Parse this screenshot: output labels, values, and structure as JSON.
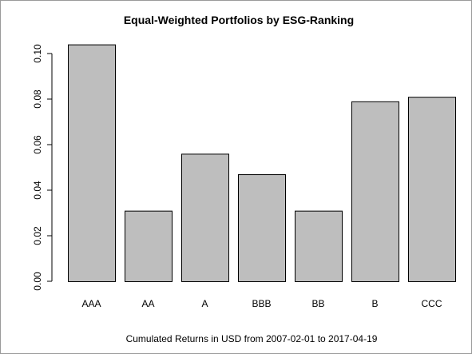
{
  "chart_data": {
    "type": "bar",
    "title": "Equal-Weighted Portfolios by ESG-Ranking",
    "xlabel": "Cumulated Returns in USD from 2007-02-01 to 2017-04-19",
    "ylabel": "",
    "categories": [
      "AAA",
      "AA",
      "A",
      "BBB",
      "BB",
      "B",
      "CCC"
    ],
    "values": [
      0.104,
      0.031,
      0.056,
      0.047,
      0.031,
      0.079,
      0.081
    ],
    "ylim": [
      0,
      0.1
    ],
    "yticks": [
      {
        "value": 0.0,
        "label": "0.00"
      },
      {
        "value": 0.02,
        "label": "0.02"
      },
      {
        "value": 0.04,
        "label": "0.04"
      },
      {
        "value": 0.06,
        "label": "0.06"
      },
      {
        "value": 0.08,
        "label": "0.08"
      },
      {
        "value": 0.1,
        "label": "0.10"
      }
    ],
    "grid": false,
    "legend": "none",
    "bar_color": "#bebebe",
    "bar_edge_color": "#000000"
  }
}
